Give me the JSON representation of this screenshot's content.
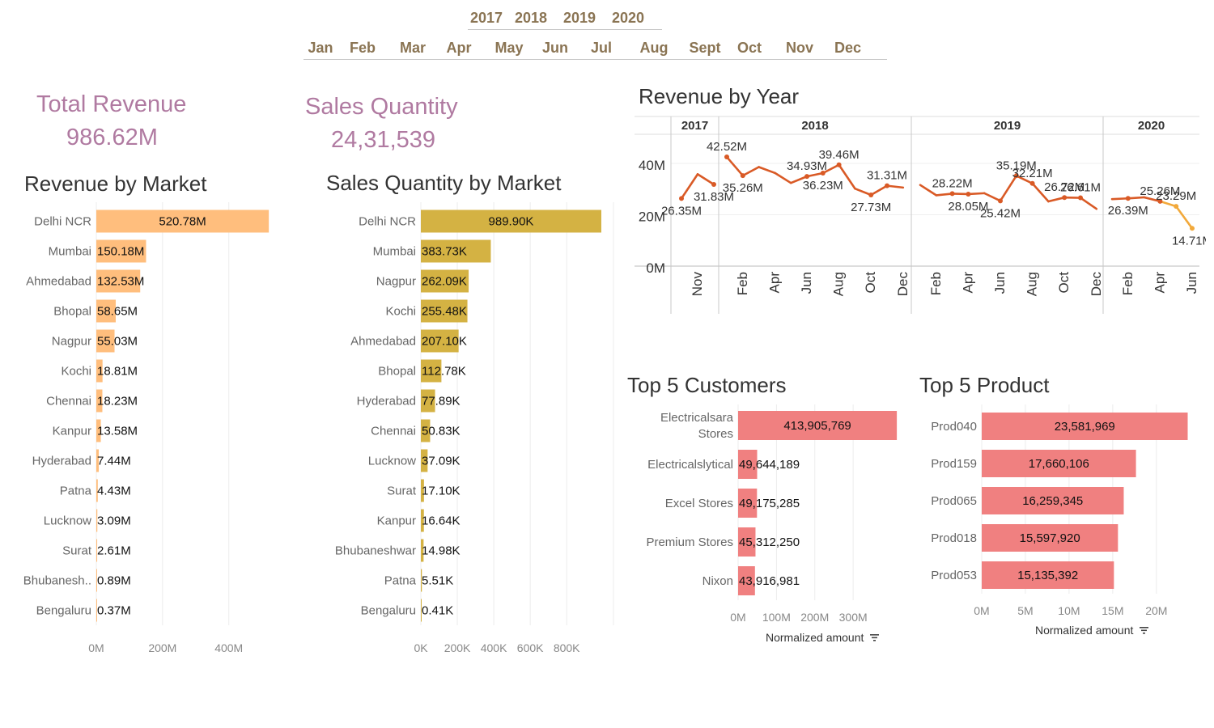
{
  "filters": {
    "years": [
      "2017",
      "2018",
      "2019",
      "2020"
    ],
    "months": [
      "Jan",
      "Feb",
      "Mar",
      "Apr",
      "May",
      "Jun",
      "Jul",
      "Aug",
      "Sept",
      "Oct",
      "Nov",
      "Dec"
    ]
  },
  "kpis": {
    "revenue_title": "Total Revenue",
    "revenue_value": "986.62M",
    "quantity_title": "Sales Quantity",
    "quantity_value": "24,31,539"
  },
  "colors": {
    "revenue_bar": "#ffbe7d",
    "quantity_bar": "#d4b243",
    "top5_bar": "#f08080",
    "line": "#d95a26",
    "line_light": "#f2a93b",
    "kpi": "#b07aa1",
    "filter": "#8a7453"
  },
  "chart_data": [
    {
      "id": "revenue_by_market",
      "type": "bar",
      "orientation": "horizontal",
      "title": "Revenue by Market",
      "categories": [
        "Delhi NCR",
        "Mumbai",
        "Ahmedabad",
        "Bhopal",
        "Nagpur",
        "Kochi",
        "Chennai",
        "Kanpur",
        "Hyderabad",
        "Patna",
        "Lucknow",
        "Surat",
        "Bhubanesh..",
        "Bengaluru"
      ],
      "values": [
        520.78,
        150.18,
        132.53,
        58.65,
        55.03,
        18.81,
        18.23,
        13.58,
        7.44,
        4.43,
        3.09,
        2.61,
        0.89,
        0.37
      ],
      "labels": [
        "520.78M",
        "150.18M",
        "132.53M",
        "58.65M",
        "55.03M",
        "18.81M",
        "18.23M",
        "13.58M",
        "7.44M",
        "4.43M",
        "3.09M",
        "2.61M",
        "0.89M",
        "0.37M"
      ],
      "xlim": [
        0,
        540
      ],
      "ticks": [
        0,
        200,
        400
      ],
      "tick_labels": [
        "0M",
        "200M",
        "400M"
      ],
      "grid": true
    },
    {
      "id": "quantity_by_market",
      "type": "bar",
      "orientation": "horizontal",
      "title": "Sales Quantity by Market",
      "categories": [
        "Delhi NCR",
        "Mumbai",
        "Nagpur",
        "Kochi",
        "Ahmedabad",
        "Bhopal",
        "Hyderabad",
        "Chennai",
        "Lucknow",
        "Surat",
        "Kanpur",
        "Bhubaneshwar",
        "Patna",
        "Bengaluru"
      ],
      "values": [
        989.9,
        383.73,
        262.09,
        255.48,
        207.1,
        112.78,
        77.89,
        50.83,
        37.09,
        17.1,
        16.64,
        14.98,
        5.51,
        0.41
      ],
      "labels": [
        "989.90K",
        "383.73K",
        "262.09K",
        "255.48K",
        "207.10K",
        "112.78K",
        "77.89K",
        "50.83K",
        "37.09K",
        "17.10K",
        "16.64K",
        "14.98K",
        "5.51K",
        "0.41K"
      ],
      "xlim": [
        0,
        1030
      ],
      "ticks": [
        0,
        200,
        400,
        600,
        800
      ],
      "tick_labels": [
        "0K",
        "200K",
        "400K",
        "600K",
        "800K"
      ],
      "grid": true
    },
    {
      "id": "revenue_by_year",
      "type": "line",
      "title": "Revenue by Year",
      "ylim": [
        0,
        46
      ],
      "y_ticks": [
        0,
        20,
        40
      ],
      "y_tick_labels": [
        "0M",
        "20M",
        "40M"
      ],
      "panels": [
        {
          "year": "2017",
          "months": [
            "Oct",
            "Nov",
            "Dec"
          ],
          "values": [
            26.35,
            35.8,
            31.83
          ],
          "point_labels": {
            "0": "26.35M",
            "2": "31.83M"
          },
          "x_tick_labels": {
            "1": "Nov"
          }
        },
        {
          "year": "2018",
          "months": [
            "Jan",
            "Feb",
            "Mar",
            "Apr",
            "May",
            "Jun",
            "Jul",
            "Aug",
            "Sep",
            "Oct",
            "Nov",
            "Dec"
          ],
          "values": [
            42.52,
            35.26,
            38.6,
            36.3,
            32.4,
            34.93,
            36.23,
            39.46,
            30.2,
            27.73,
            31.31,
            30.6
          ],
          "point_labels": {
            "0": "42.52M",
            "1": "35.26M",
            "5": "34.93M",
            "6": "36.23M",
            "7": "39.46M",
            "9": "27.73M",
            "10": "31.31M"
          },
          "x_tick_labels": {
            "1": "Feb",
            "3": "Apr",
            "5": "Jun",
            "7": "Aug",
            "9": "Oct",
            "11": "Dec"
          }
        },
        {
          "year": "2019",
          "months": [
            "Jan",
            "Feb",
            "Mar",
            "Apr",
            "May",
            "Jun",
            "Jul",
            "Aug",
            "Sep",
            "Oct",
            "Nov",
            "Dec"
          ],
          "values": [
            31.6,
            27.6,
            28.22,
            28.05,
            28.4,
            25.42,
            35.19,
            32.21,
            25.2,
            26.72,
            26.61,
            22.3
          ],
          "point_labels": {
            "2": "28.22M",
            "3": "28.05M",
            "5": "25.42M",
            "6": "35.19M",
            "7": "32.21M",
            "9": "26.72M",
            "10": "26.61M"
          },
          "x_tick_labels": {
            "1": "Feb",
            "3": "Apr",
            "5": "Jun",
            "7": "Aug",
            "9": "Oct",
            "11": "Dec"
          }
        },
        {
          "year": "2020",
          "months": [
            "Jan",
            "Feb",
            "Mar",
            "Apr",
            "May",
            "Jun"
          ],
          "values": [
            26.1,
            26.39,
            26.8,
            25.26,
            23.29,
            14.71
          ],
          "point_labels": {
            "1": "26.39M",
            "3": "25.26M",
            "4": "23.29M",
            "5": "14.71M"
          },
          "x_tick_labels": {
            "1": "Feb",
            "3": "Apr",
            "5": "Jun"
          }
        }
      ]
    },
    {
      "id": "top5_customers",
      "type": "bar",
      "orientation": "horizontal",
      "title": "Top 5 Customers",
      "categories": [
        "Electricalsara Stores",
        "Electricalslytical",
        "Excel Stores",
        "Premium Stores",
        "Nixon"
      ],
      "values": [
        413905769,
        49644189,
        49175285,
        45312250,
        43916981
      ],
      "labels": [
        "413,905,769",
        "49,644,189",
        "49,175,285",
        "45,312,250",
        "43,916,981"
      ],
      "xlim": [
        0,
        420000000
      ],
      "ticks": [
        0,
        100000000,
        200000000,
        300000000
      ],
      "tick_labels": [
        "0M",
        "100M",
        "200M",
        "300M"
      ],
      "xlabel": "Normalized amount",
      "grid": true
    },
    {
      "id": "top5_products",
      "type": "bar",
      "orientation": "horizontal",
      "title": "Top 5 Product",
      "categories": [
        "Prod040",
        "Prod159",
        "Prod065",
        "Prod018",
        "Prod053"
      ],
      "values": [
        23581969,
        17660106,
        16259345,
        15597920,
        15135392
      ],
      "labels": [
        "23,581,969",
        "17,660,106",
        "16,259,345",
        "15,597,920",
        "15,135,392"
      ],
      "xlim": [
        0,
        24000000
      ],
      "ticks": [
        0,
        5000000,
        10000000,
        15000000,
        20000000
      ],
      "tick_labels": [
        "0M",
        "5M",
        "10M",
        "15M",
        "20M"
      ],
      "xlabel": "Normalized amount",
      "grid": true
    }
  ]
}
